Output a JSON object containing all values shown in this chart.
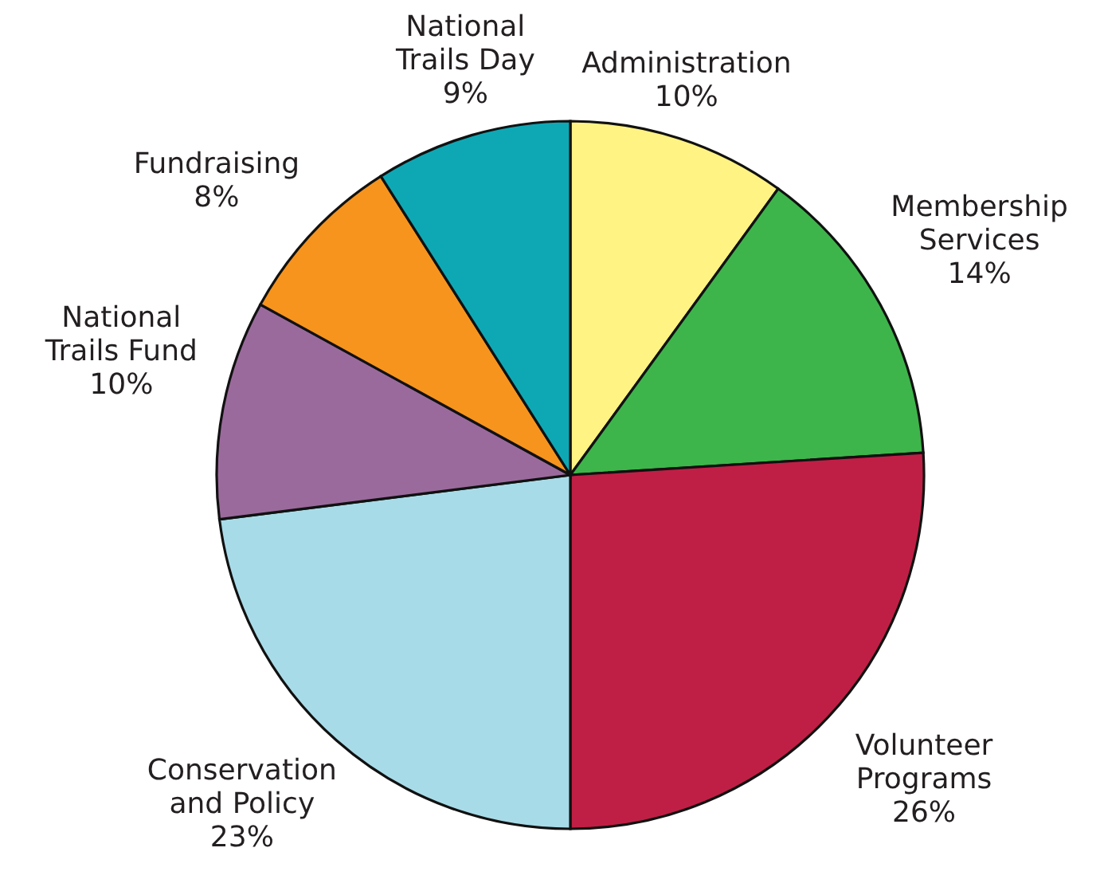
{
  "chart_data": {
    "type": "pie",
    "categories": [
      "Administration",
      "Membership Services",
      "Volunteer Programs",
      "Conservation and Policy",
      "National Trails Fund",
      "Fundraising",
      "National Trails Day"
    ],
    "values": [
      10,
      14,
      26,
      23,
      10,
      8,
      9
    ],
    "colors": [
      "#fff383",
      "#3db54a",
      "#c01f45",
      "#a8dbe8",
      "#9b6a9c",
      "#f7941d",
      "#0ea8b5"
    ],
    "value_labels": [
      "10%",
      "14%",
      "26%",
      "23%",
      "10%",
      "8%",
      "9%"
    ],
    "legend": false
  }
}
